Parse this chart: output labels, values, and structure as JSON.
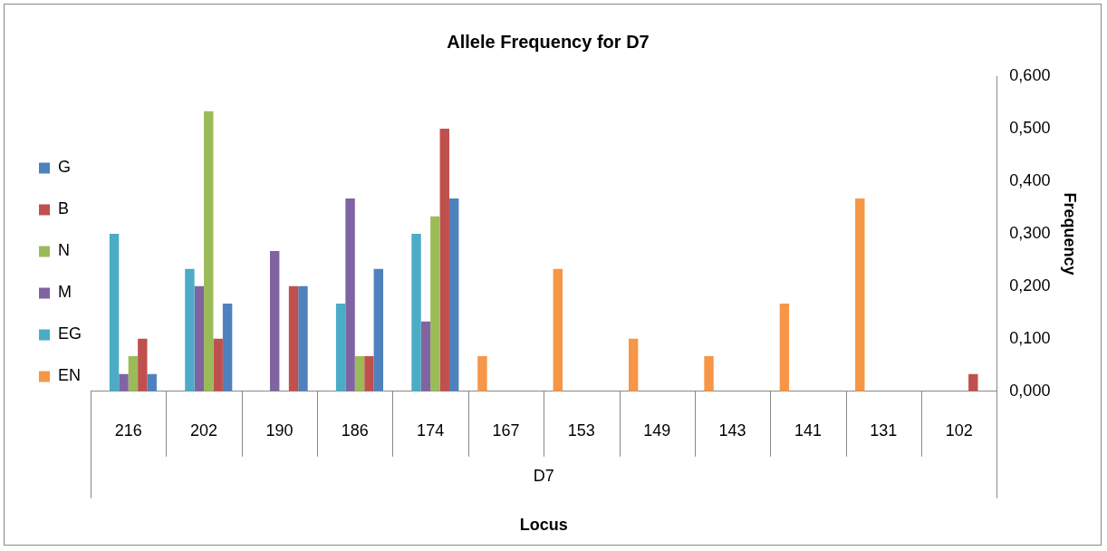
{
  "chart_data": {
    "type": "bar",
    "title": "Allele Frequency for D7",
    "xlabel": "Locus",
    "ylabel": "Frequency",
    "categories": [
      "216",
      "202",
      "190",
      "186",
      "174",
      "167",
      "153",
      "149",
      "143",
      "141",
      "131",
      "102"
    ],
    "series": [
      {
        "name": "EN",
        "color": "#f79646",
        "values": [
          null,
          null,
          null,
          null,
          null,
          0.067,
          0.233,
          0.1,
          0.067,
          0.167,
          0.367,
          null
        ]
      },
      {
        "name": "EG",
        "color": "#4bacc6",
        "values": [
          0.3,
          0.233,
          null,
          0.167,
          0.3,
          null,
          null,
          null,
          null,
          null,
          null,
          null
        ]
      },
      {
        "name": "M",
        "color": "#8064a2",
        "values": [
          0.033,
          0.2,
          0.267,
          0.367,
          0.133,
          null,
          null,
          null,
          null,
          null,
          null,
          null
        ]
      },
      {
        "name": "N",
        "color": "#9bbb59",
        "values": [
          0.067,
          0.533,
          null,
          0.067,
          0.333,
          null,
          null,
          null,
          null,
          null,
          null,
          null
        ]
      },
      {
        "name": "B",
        "color": "#c0504d",
        "values": [
          0.1,
          0.1,
          0.2,
          0.067,
          0.5,
          null,
          null,
          null,
          null,
          null,
          null,
          0.033
        ]
      },
      {
        "name": "G",
        "color": "#4f81bd",
        "values": [
          0.033,
          0.167,
          0.2,
          0.233,
          0.367,
          null,
          null,
          null,
          null,
          null,
          null,
          null
        ]
      }
    ],
    "ylim": [
      0,
      0.6
    ],
    "yticks": [
      {
        "value": 0,
        "label": "0,000"
      },
      {
        "value": 0.1,
        "label": "0,100"
      },
      {
        "value": 0.2,
        "label": "0,200"
      },
      {
        "value": 0.3,
        "label": "0,300"
      },
      {
        "value": 0.4,
        "label": "0,400"
      },
      {
        "value": 0.5,
        "label": "0,500"
      },
      {
        "value": 0.6,
        "label": "0,600"
      }
    ],
    "annotations": [
      "D7"
    ],
    "legend": "left",
    "grid": false
  }
}
